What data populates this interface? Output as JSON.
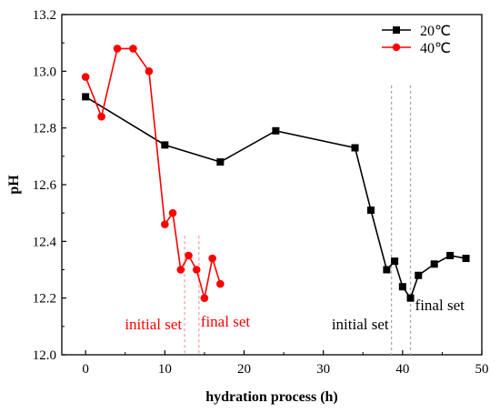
{
  "chart_data": {
    "type": "line",
    "title": "",
    "xlabel": "hydration process (h)",
    "ylabel": "pH",
    "xlim": [
      -3,
      50
    ],
    "ylim": [
      12.0,
      13.2
    ],
    "xticks": [
      0,
      10,
      20,
      30,
      40,
      50
    ],
    "yticks": [
      12.0,
      12.2,
      12.4,
      12.6,
      12.8,
      13.0,
      13.2
    ],
    "grid": false,
    "legend_position": "top-right",
    "series": [
      {
        "name": "20℃",
        "color": "#000000",
        "marker": "square",
        "x": [
          0,
          10,
          17,
          24,
          34,
          36,
          38,
          39,
          40,
          41,
          42,
          44,
          46,
          48
        ],
        "y": [
          12.91,
          12.74,
          12.68,
          12.79,
          12.73,
          12.51,
          12.3,
          12.33,
          12.24,
          12.2,
          12.28,
          12.32,
          12.35,
          12.34
        ]
      },
      {
        "name": "40℃",
        "color": "#ff0000",
        "marker": "circle",
        "x": [
          0,
          2,
          4,
          6,
          8,
          10,
          11,
          12,
          13,
          14,
          15,
          16,
          17
        ],
        "y": [
          12.98,
          12.84,
          13.08,
          13.08,
          13.0,
          12.46,
          12.5,
          12.3,
          12.35,
          12.3,
          12.2,
          12.34,
          12.25
        ]
      }
    ],
    "annotations": [
      {
        "text": "initial set",
        "color": "#ff0000",
        "line_x": 12.5
      },
      {
        "text": "final set",
        "color": "#ff0000",
        "line_x": 14.3
      },
      {
        "text": "initial set",
        "color": "#000000",
        "line_x": 38.6
      },
      {
        "text": "final set",
        "color": "#000000",
        "line_x": 41.0
      }
    ]
  }
}
